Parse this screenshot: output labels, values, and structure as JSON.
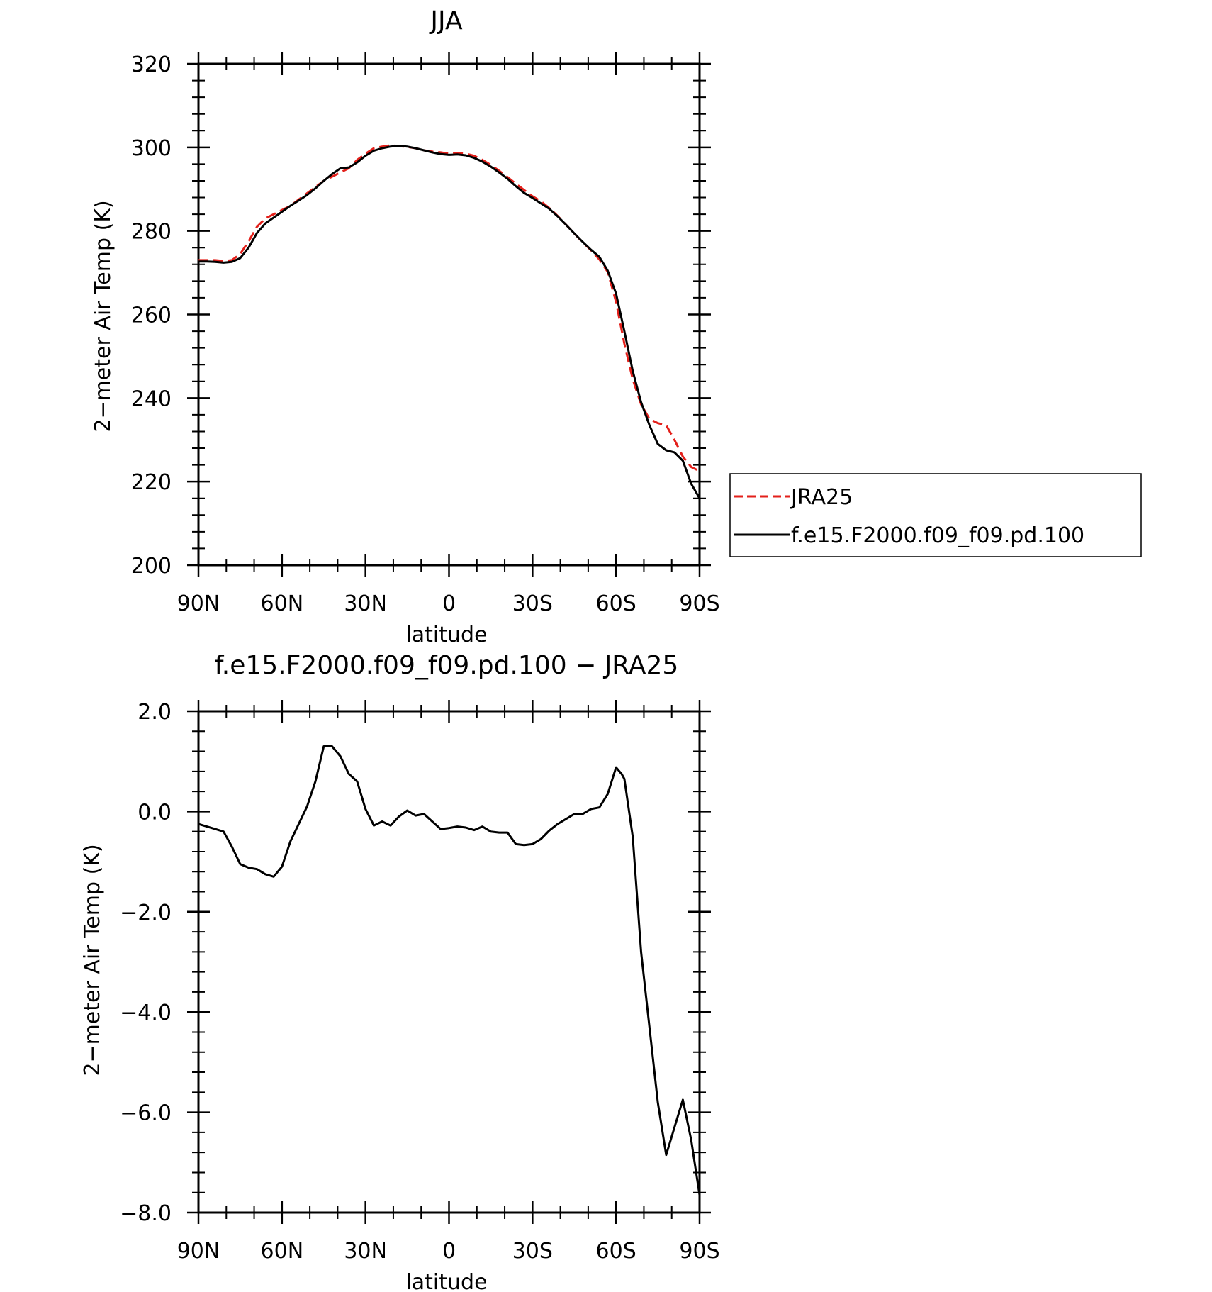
{
  "chart_data": [
    {
      "type": "line",
      "title": "JJA",
      "xlabel": "latitude",
      "ylabel": "2−meter Air Temp (K)",
      "x_ticks": [
        "90N",
        "60N",
        "30N",
        "0",
        "30S",
        "60S",
        "90S"
      ],
      "x_tick_values": [
        90,
        60,
        30,
        0,
        -30,
        -60,
        -90
      ],
      "y_ticks": [
        "200",
        "220",
        "240",
        "260",
        "280",
        "300",
        "320"
      ],
      "y_tick_values": [
        200,
        220,
        240,
        260,
        280,
        300,
        320
      ],
      "xlim": [
        90,
        -90
      ],
      "ylim": [
        200,
        320
      ],
      "legend_position": "right",
      "series": [
        {
          "name": "JRA25",
          "color": "#e3201b",
          "dash": "dashed",
          "x": [
            90,
            87,
            84,
            81,
            78,
            75,
            72,
            69,
            66,
            63,
            60,
            57,
            54,
            51,
            48,
            45,
            42,
            39,
            36,
            33,
            30,
            27,
            24,
            21,
            18,
            15,
            12,
            9,
            6,
            3,
            0,
            -3,
            -6,
            -9,
            -12,
            -15,
            -18,
            -21,
            -24,
            -27,
            -30,
            -33,
            -36,
            -39,
            -42,
            -45,
            -48,
            -51,
            -54,
            -57,
            -60,
            -63,
            -66,
            -69,
            -72,
            -75,
            -78,
            -81,
            -84,
            -87,
            -90
          ],
          "y": [
            273,
            273,
            273,
            272.8,
            273,
            274.5,
            277.5,
            281,
            283,
            284,
            285,
            286,
            287.5,
            289,
            290.5,
            292,
            293,
            294,
            295,
            297,
            298.5,
            299.8,
            300.2,
            300.5,
            300.3,
            300.1,
            299.8,
            299.3,
            299,
            298.8,
            298.5,
            298.6,
            298.5,
            298,
            297,
            295.8,
            294.4,
            292.9,
            291.3,
            289.8,
            288.3,
            287.1,
            285.5,
            283.6,
            281.5,
            279.4,
            277.3,
            275.4,
            273.2,
            270.2,
            263,
            253,
            244.5,
            238.5,
            235,
            234,
            233.5,
            230,
            226,
            223.5,
            222.5
          ]
        },
        {
          "name": "f.e15.F2000.f09_f09.pd.100",
          "color": "#000000",
          "dash": "solid",
          "x": [
            90,
            87,
            84,
            81,
            78,
            75,
            72,
            69,
            66,
            63,
            60,
            57,
            54,
            51,
            48,
            45,
            42,
            39,
            36,
            33,
            30,
            27,
            24,
            21,
            18,
            15,
            12,
            9,
            6,
            3,
            0,
            -3,
            -6,
            -9,
            -12,
            -15,
            -18,
            -21,
            -24,
            -27,
            -30,
            -33,
            -36,
            -39,
            -42,
            -45,
            -48,
            -51,
            -54,
            -57,
            -60,
            -63,
            -66,
            -69,
            -72,
            -75,
            -78,
            -81,
            -84,
            -87,
            -90
          ],
          "y": [
            272.7,
            272.7,
            272.6,
            272.4,
            272.6,
            273.5,
            276,
            279.5,
            281.8,
            283.2,
            284.6,
            286,
            287.3,
            288.6,
            290.2,
            292,
            293.6,
            295,
            295.2,
            296.4,
            298,
            299.2,
            299.8,
            300.2,
            300.4,
            300.2,
            299.8,
            299.3,
            298.8,
            298.4,
            298.2,
            298.3,
            298.1,
            297.5,
            296.6,
            295.4,
            294,
            292.5,
            290.7,
            289.1,
            287.9,
            286.6,
            285.3,
            283.5,
            281.5,
            279.4,
            277.4,
            275.5,
            273.8,
            270.5,
            265,
            256,
            246.5,
            239,
            233.5,
            229,
            227.5,
            227,
            225,
            219.5,
            216
          ]
        }
      ]
    },
    {
      "type": "line",
      "title": "f.e15.F2000.f09_f09.pd.100 − JRA25",
      "xlabel": "latitude",
      "ylabel": "2−meter Air Temp (K)",
      "x_ticks": [
        "90N",
        "60N",
        "30N",
        "0",
        "30S",
        "60S",
        "90S"
      ],
      "x_tick_values": [
        90,
        60,
        30,
        0,
        -30,
        -60,
        -90
      ],
      "y_ticks": [
        "−8.0",
        "−6.0",
        "−4.0",
        "−2.0",
        "0.0",
        "2.0"
      ],
      "y_tick_values": [
        -8,
        -6,
        -4,
        -2,
        0,
        2
      ],
      "xlim": [
        90,
        -90
      ],
      "ylim": [
        -8,
        2
      ],
      "series": [
        {
          "color": "#000000",
          "dash": "solid",
          "x": [
            90,
            87,
            84,
            81,
            78,
            75,
            72,
            69,
            66,
            63,
            60,
            57,
            54,
            51,
            48,
            45,
            42,
            39,
            36,
            33,
            30,
            27,
            24,
            21,
            18,
            15,
            12,
            9,
            6,
            3,
            0,
            -3,
            -6,
            -9,
            -12,
            -15,
            -18,
            -21,
            -24,
            -27,
            -30,
            -33,
            -36,
            -39,
            -42,
            -45,
            -48,
            -51,
            -54,
            -57,
            -60,
            -62,
            -63,
            -66,
            -69,
            -72,
            -75,
            -78,
            -81,
            -84,
            -87,
            -90
          ],
          "y": [
            -0.25,
            -0.3,
            -0.35,
            -0.4,
            -0.7,
            -1.05,
            -1.12,
            -1.15,
            -1.25,
            -1.3,
            -1.1,
            -0.6,
            -0.25,
            0.1,
            0.6,
            1.3,
            1.3,
            1.1,
            0.75,
            0.6,
            0.05,
            -0.28,
            -0.2,
            -0.28,
            -0.1,
            0.02,
            -0.08,
            -0.05,
            -0.2,
            -0.35,
            -0.33,
            -0.3,
            -0.32,
            -0.37,
            -0.3,
            -0.4,
            -0.42,
            -0.42,
            -0.65,
            -0.67,
            -0.65,
            -0.55,
            -0.38,
            -0.25,
            -0.15,
            -0.05,
            -0.05,
            0.05,
            0.08,
            0.35,
            0.88,
            0.75,
            0.65,
            -0.5,
            -2.8,
            -4.3,
            -5.8,
            -6.85,
            -6.3,
            -5.75,
            -6.55,
            -7.65
          ]
        }
      ]
    }
  ]
}
